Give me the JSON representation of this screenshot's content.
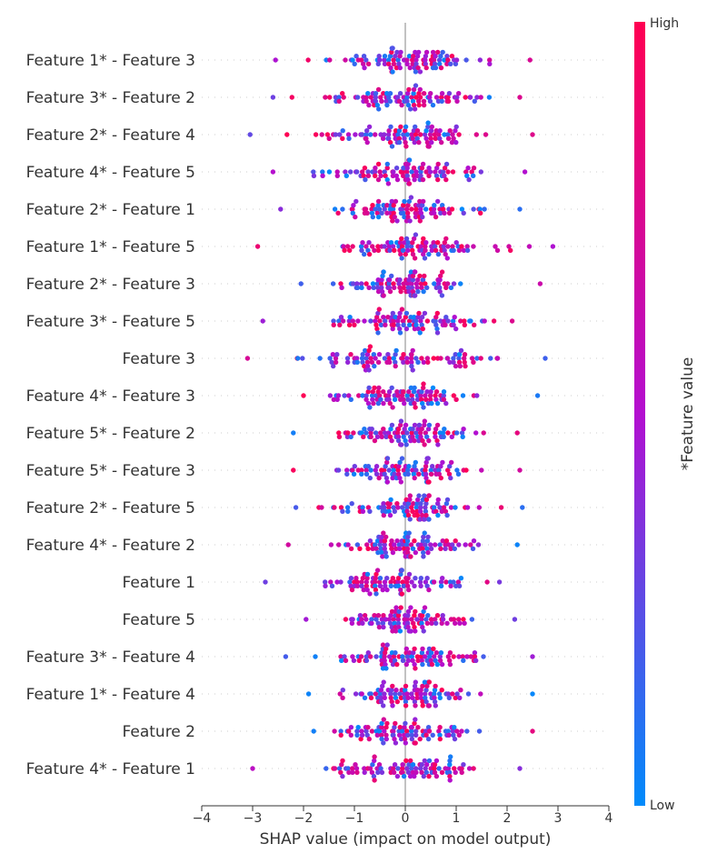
{
  "chart_data": {
    "type": "scatter",
    "subtype": "shap-beeswarm",
    "xlabel": "SHAP value (impact on model output)",
    "xlim": [
      -4,
      4
    ],
    "xticks": [
      -4,
      -3,
      -2,
      -1,
      0,
      1,
      2,
      3,
      4
    ],
    "xtick_labels": [
      "−4",
      "−3",
      "−2",
      "−1",
      "0",
      "1",
      "2",
      "3",
      "4"
    ],
    "colorbar": {
      "title": "*Feature value",
      "high_label": "High",
      "low_label": "Low",
      "high_color": "#ff0052",
      "mid_color": "#b30fd0",
      "low_color": "#008bfb"
    },
    "grid": false,
    "features": [
      {
        "name": "Feature 1* - Feature 3",
        "min": -2.55,
        "max": 2.45
      },
      {
        "name": "Feature 3* - Feature 2",
        "min": -2.6,
        "max": 2.25
      },
      {
        "name": "Feature 2* - Feature 4",
        "min": -3.05,
        "max": 2.5
      },
      {
        "name": "Feature 4* - Feature 5",
        "min": -2.6,
        "max": 2.35
      },
      {
        "name": "Feature 2* - Feature 1",
        "min": -2.45,
        "max": 2.25
      },
      {
        "name": "Feature 1* - Feature 5",
        "min": -2.9,
        "max": 2.9
      },
      {
        "name": "Feature 2* - Feature 3",
        "min": -2.05,
        "max": 2.65
      },
      {
        "name": "Feature 3* - Feature 5",
        "min": -2.8,
        "max": 2.1
      },
      {
        "name": "Feature 3",
        "min": -3.1,
        "max": 2.75
      },
      {
        "name": "Feature 4* - Feature 3",
        "min": -2.0,
        "max": 2.6
      },
      {
        "name": "Feature 5* - Feature 2",
        "min": -2.2,
        "max": 2.2
      },
      {
        "name": "Feature 5* - Feature 3",
        "min": -2.2,
        "max": 2.25
      },
      {
        "name": "Feature 2* - Feature 5",
        "min": -2.15,
        "max": 2.3
      },
      {
        "name": "Feature 4* - Feature 2",
        "min": -2.3,
        "max": 2.2
      },
      {
        "name": "Feature 1",
        "min": -2.75,
        "max": 1.85
      },
      {
        "name": "Feature 5",
        "min": -1.95,
        "max": 2.15
      },
      {
        "name": "Feature 3* - Feature 4",
        "min": -2.35,
        "max": 2.5
      },
      {
        "name": "Feature 1* - Feature 4",
        "min": -1.9,
        "max": 2.5
      },
      {
        "name": "Feature 2",
        "min": -1.8,
        "max": 2.5
      },
      {
        "name": "Feature 4* - Feature 1",
        "min": -3.0,
        "max": 2.25
      }
    ]
  }
}
